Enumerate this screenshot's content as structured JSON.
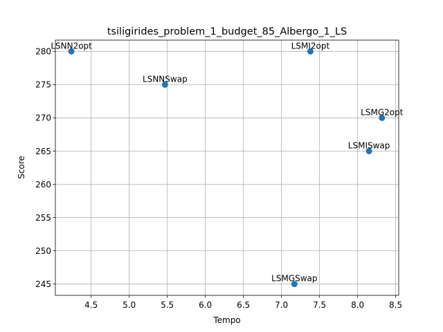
{
  "chart_data": {
    "type": "scatter",
    "title": "tsiligirides_problem_1_budget_85_Albergo_1_LS",
    "xlabel": "Tempo",
    "ylabel": "Score",
    "xlim": [
      4.03,
      8.54
    ],
    "ylim": [
      243.3,
      281.7
    ],
    "grid": true,
    "x_ticks": [
      4.5,
      5.0,
      5.5,
      6.0,
      6.5,
      7.0,
      7.5,
      8.0,
      8.5
    ],
    "x_tick_labels": [
      "4.5",
      "5.0",
      "5.5",
      "6.0",
      "6.5",
      "7.0",
      "7.5",
      "8.0",
      "8.5"
    ],
    "y_ticks": [
      245,
      250,
      255,
      260,
      265,
      270,
      275,
      280
    ],
    "y_tick_labels": [
      "245",
      "250",
      "255",
      "260",
      "265",
      "270",
      "275",
      "280"
    ],
    "marker_color": "#1f77b4",
    "points": [
      {
        "label": "LSNN2opt",
        "x": 4.24,
        "y": 280
      },
      {
        "label": "LSNNSwap",
        "x": 5.47,
        "y": 275
      },
      {
        "label": "LSMI2opt",
        "x": 7.38,
        "y": 280
      },
      {
        "label": "LSMG2opt",
        "x": 8.32,
        "y": 270
      },
      {
        "label": "LSMISwap",
        "x": 8.15,
        "y": 265
      },
      {
        "label": "LSMGSwap",
        "x": 7.17,
        "y": 245
      }
    ]
  }
}
